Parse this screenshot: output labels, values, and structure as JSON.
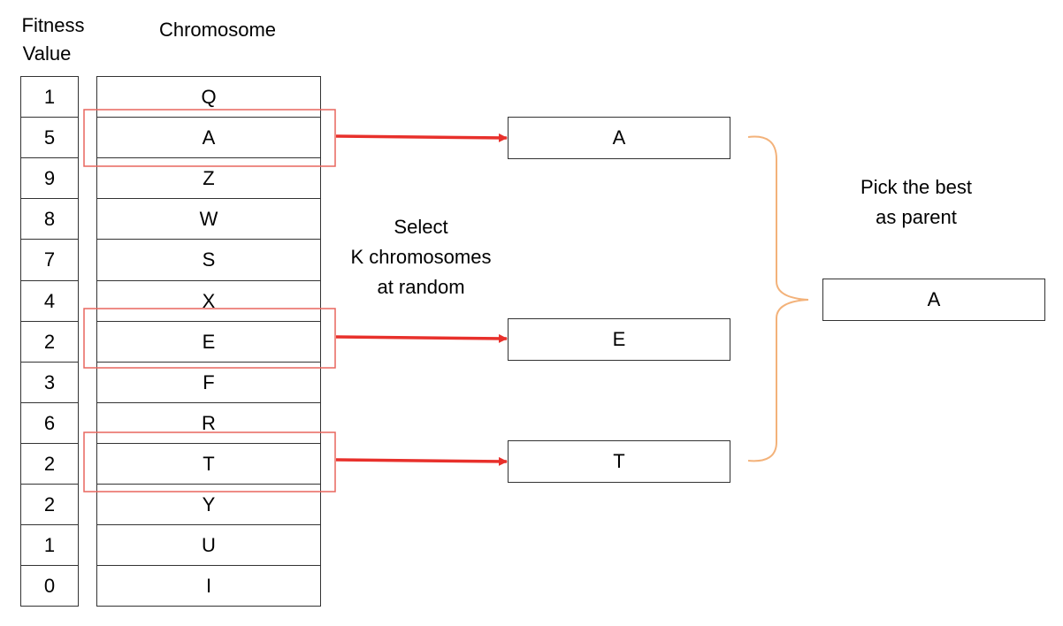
{
  "headers": {
    "fitness_line1": "Fitness",
    "fitness_line2": "Value",
    "chromosome": "Chromosome"
  },
  "population": [
    {
      "fitness": "1",
      "chromosome": "Q"
    },
    {
      "fitness": "5",
      "chromosome": "A"
    },
    {
      "fitness": "9",
      "chromosome": "Z"
    },
    {
      "fitness": "8",
      "chromosome": "W"
    },
    {
      "fitness": "7",
      "chromosome": "S"
    },
    {
      "fitness": "4",
      "chromosome": "X"
    },
    {
      "fitness": "2",
      "chromosome": "E"
    },
    {
      "fitness": "3",
      "chromosome": "F"
    },
    {
      "fitness": "6",
      "chromosome": "R"
    },
    {
      "fitness": "2",
      "chromosome": "T"
    },
    {
      "fitness": "2",
      "chromosome": "Y"
    },
    {
      "fitness": "1",
      "chromosome": "U"
    },
    {
      "fitness": "0",
      "chromosome": "I"
    }
  ],
  "selected": [
    "A",
    "E",
    "T"
  ],
  "select_label": {
    "line1": "Select",
    "line2": "K chromosomes",
    "line3": "at random"
  },
  "pick_label": {
    "line1": "Pick the best",
    "line2": "as parent"
  },
  "parent": "A",
  "colors": {
    "highlight": "#e8665e",
    "arrow": "#e8302b",
    "brace": "#f3b27a",
    "border": "#333333"
  }
}
